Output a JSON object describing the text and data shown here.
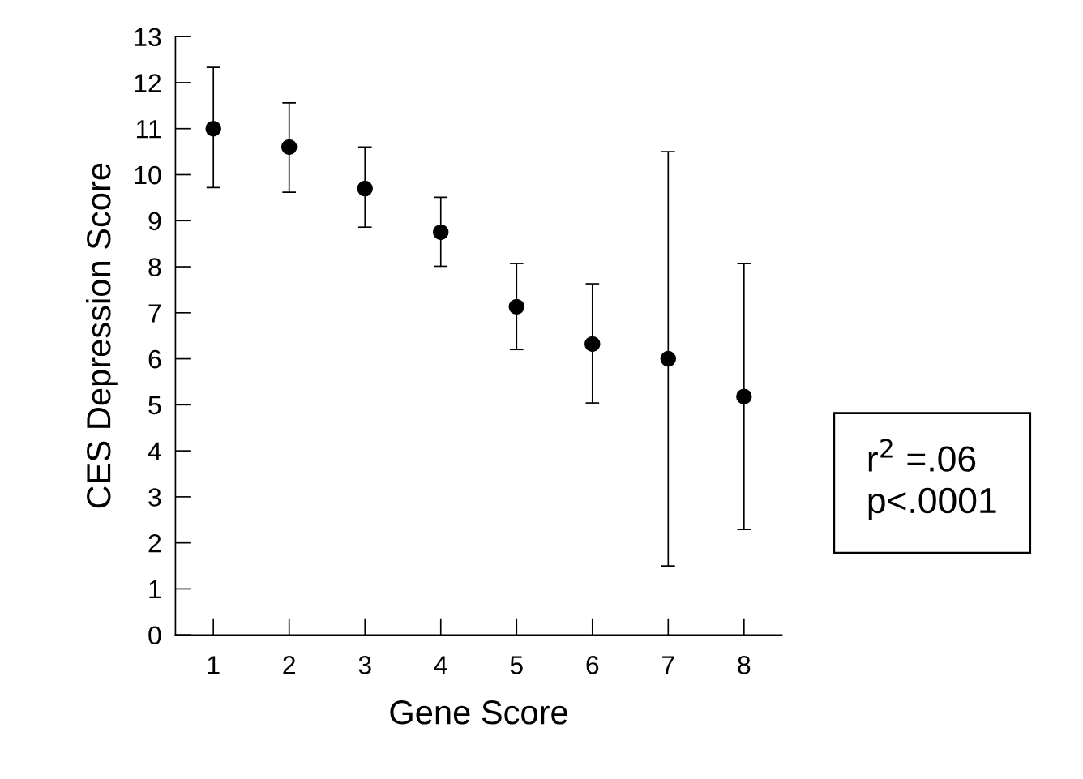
{
  "chart_data": {
    "type": "scatter",
    "xlabel": "Gene Score",
    "ylabel": "CES Depression Score",
    "x": [
      1,
      2,
      3,
      4,
      5,
      6,
      7,
      8
    ],
    "series": [
      {
        "color": "#000000",
        "values": [
          11.0,
          10.6,
          9.7,
          8.75,
          7.13,
          6.32,
          6.0,
          5.18
        ],
        "errors": [
          [
            9.72,
            12.33
          ],
          [
            9.62,
            11.56
          ],
          [
            8.86,
            10.6
          ],
          [
            8.01,
            9.51
          ],
          [
            6.2,
            8.07
          ],
          [
            5.04,
            7.63
          ],
          [
            1.5,
            10.5
          ],
          [
            2.29,
            8.07
          ]
        ]
      }
    ],
    "xlim": [
      0.5,
      8.5
    ],
    "xticks": [
      1,
      2,
      3,
      4,
      5,
      6,
      7,
      8
    ],
    "ylim": [
      0,
      13
    ],
    "yticks": [
      0,
      1,
      2,
      3,
      4,
      5,
      6,
      7,
      8,
      9,
      10,
      11,
      12,
      13
    ],
    "marker": "circle",
    "grid": false,
    "legend": false,
    "annotations": [
      "r$^{2}$ =.06\np<.0001"
    ]
  }
}
